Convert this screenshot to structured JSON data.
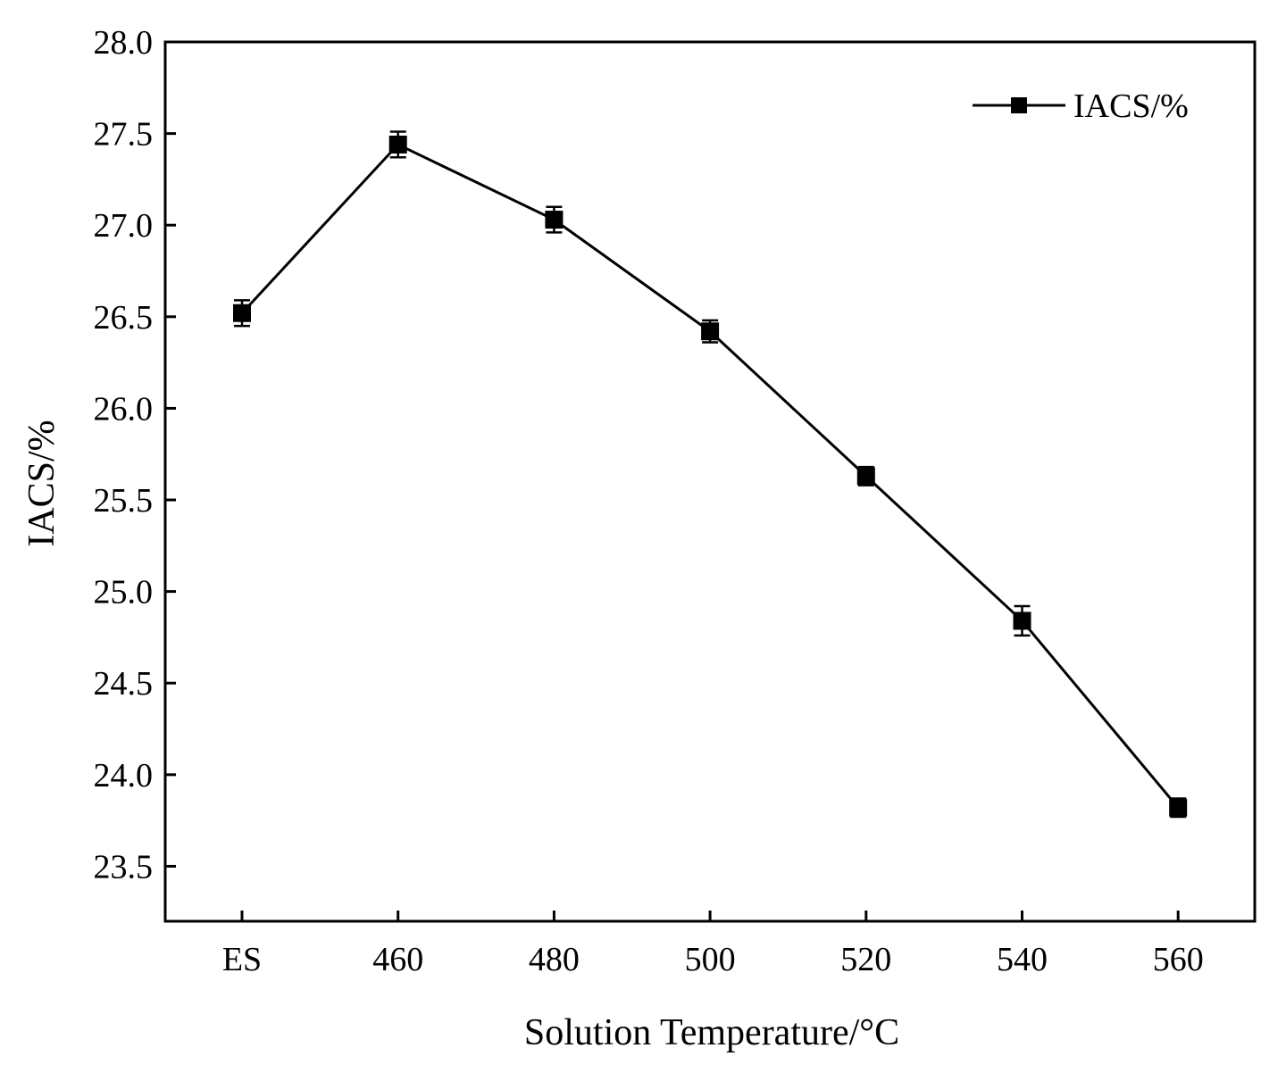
{
  "chart_data": {
    "type": "line",
    "title": "",
    "xlabel": "Solution Temperature/°C",
    "ylabel": "IACS/%",
    "categories": [
      "ES",
      "460",
      "480",
      "500",
      "520",
      "540",
      "560"
    ],
    "ylim": [
      23.2,
      28.0
    ],
    "yticks": [
      "23.5",
      "24.0",
      "24.5",
      "25.0",
      "25.5",
      "26.0",
      "26.5",
      "27.0",
      "27.5",
      "28.0"
    ],
    "grid": false,
    "legend_position": "top-right",
    "series": [
      {
        "name": "IACS/%",
        "marker": "square",
        "color": "#000000",
        "values": [
          26.52,
          27.44,
          27.03,
          26.42,
          25.63,
          24.84,
          23.82
        ],
        "errors": [
          0.07,
          0.07,
          0.07,
          0.06,
          0.05,
          0.08,
          0.05
        ]
      }
    ]
  }
}
